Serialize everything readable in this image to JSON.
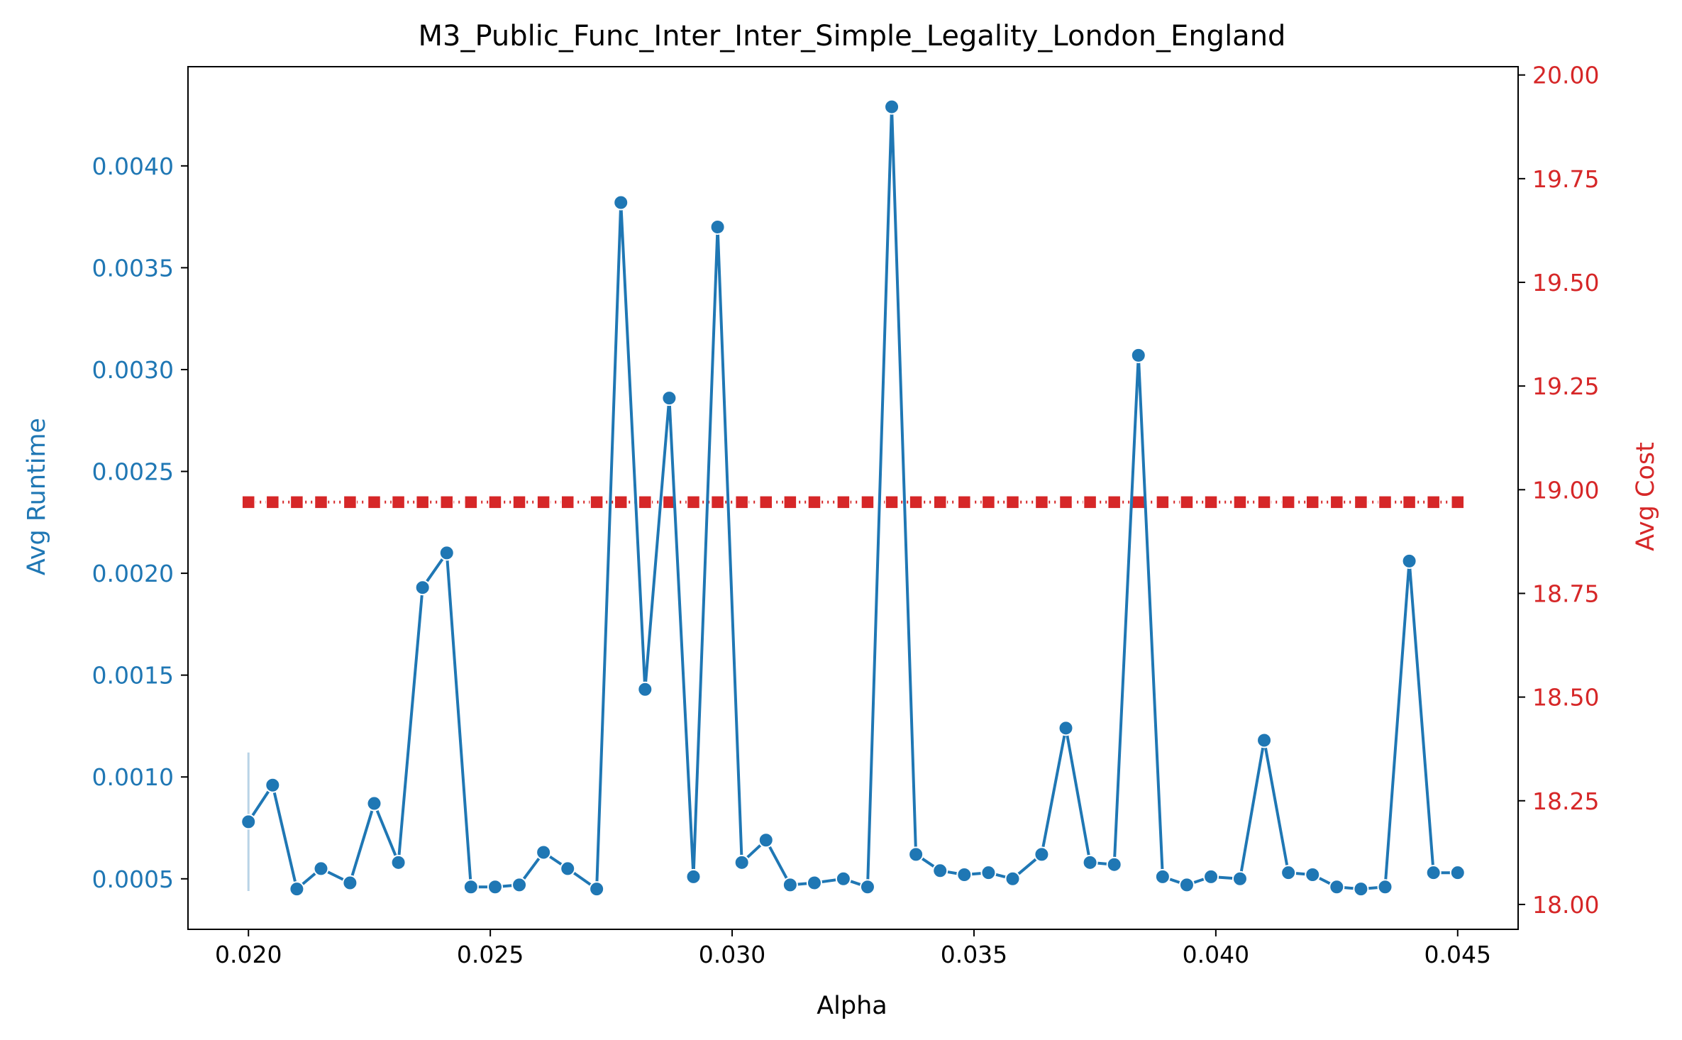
{
  "chart_data": {
    "type": "line",
    "title": "M3_Public_Func_Inter_Inter_Simple_Legality_London_England",
    "xlabel": "Alpha",
    "ylabel_left": "Avg Runtime",
    "ylabel_right": "Avg Cost",
    "x_ticks": [
      "0.020",
      "0.025",
      "0.030",
      "0.035",
      "0.040",
      "0.045"
    ],
    "y_left_ticks": [
      "0.0005",
      "0.0010",
      "0.0015",
      "0.0020",
      "0.0025",
      "0.0030",
      "0.0035",
      "0.0040"
    ],
    "y_right_ticks": [
      "18.00",
      "18.25",
      "18.50",
      "18.75",
      "19.00",
      "19.25",
      "19.50",
      "19.75",
      "20.00"
    ],
    "xlim": [
      0.01875,
      0.04625
    ],
    "ylim_left": [
      0.000252,
      0.004487
    ],
    "ylim_right": [
      17.94,
      20.02
    ],
    "grid": false,
    "colors": {
      "runtime": "#1f77b4",
      "cost": "#d62728",
      "error_band": "#b9d3e6"
    },
    "x": [
      0.02,
      0.0205,
      0.021,
      0.0215,
      0.0221,
      0.0226,
      0.0231,
      0.0236,
      0.0241,
      0.0246,
      0.0251,
      0.0256,
      0.0261,
      0.0266,
      0.0272,
      0.0277,
      0.0282,
      0.0287,
      0.0292,
      0.0297,
      0.0302,
      0.0307,
      0.0312,
      0.0317,
      0.0323,
      0.0328,
      0.0333,
      0.0338,
      0.0343,
      0.0348,
      0.0353,
      0.0358,
      0.0364,
      0.0369,
      0.0374,
      0.0379,
      0.0384,
      0.0389,
      0.0394,
      0.0399,
      0.0405,
      0.041,
      0.0415,
      0.042,
      0.0425,
      0.043,
      0.0435,
      0.044,
      0.0445,
      0.045
    ],
    "series": [
      {
        "axis": "left",
        "marker": "circle",
        "line": "solid",
        "values": [
          0.00078,
          0.00096,
          0.00045,
          0.00055,
          0.00048,
          0.00087,
          0.00058,
          0.00193,
          0.0021,
          0.00046,
          0.00046,
          0.00047,
          0.00063,
          0.00055,
          0.00045,
          0.00382,
          0.00143,
          0.00286,
          0.00051,
          0.0037,
          0.00058,
          0.00069,
          0.00047,
          0.00048,
          0.0005,
          0.00046,
          0.00429,
          0.00062,
          0.00054,
          0.00052,
          0.00053,
          0.0005,
          0.00062,
          0.00124,
          0.00058,
          0.00057,
          0.00307,
          0.00051,
          0.00047,
          0.00051,
          0.0005,
          0.00118,
          0.00053,
          0.00052,
          0.00046,
          0.00045,
          0.00046,
          0.00206,
          0.00053,
          0.00053
        ],
        "error_band": {
          "x": 0.02,
          "low": 0.00044,
          "high": 0.00112
        }
      },
      {
        "axis": "right",
        "marker": "square",
        "line": "dotted",
        "values": [
          18.97,
          18.97,
          18.97,
          18.97,
          18.97,
          18.97,
          18.97,
          18.97,
          18.97,
          18.97,
          18.97,
          18.97,
          18.97,
          18.97,
          18.97,
          18.97,
          18.97,
          18.97,
          18.97,
          18.97,
          18.97,
          18.97,
          18.97,
          18.97,
          18.97,
          18.97,
          18.97,
          18.97,
          18.97,
          18.97,
          18.97,
          18.97,
          18.97,
          18.97,
          18.97,
          18.97,
          18.97,
          18.97,
          18.97,
          18.97,
          18.97,
          18.97,
          18.97,
          18.97,
          18.97,
          18.97,
          18.97,
          18.97,
          18.97,
          18.97
        ]
      }
    ]
  }
}
